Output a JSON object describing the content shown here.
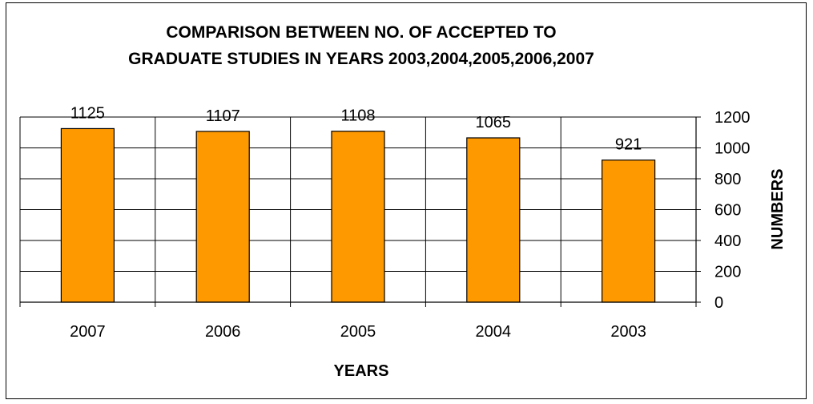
{
  "chart_data": {
    "type": "bar",
    "title_lines": [
      "COMPARISON BETWEEN NO. OF ACCEPTED TO",
      "GRADUATE STUDIES IN YEARS 2003,2004,2005,2006,2007"
    ],
    "categories": [
      "2007",
      "2006",
      "2005",
      "2004",
      "2003"
    ],
    "values": [
      1125,
      1107,
      1108,
      1065,
      921
    ],
    "data_labels": [
      "1125",
      "1107",
      "1108",
      "1065",
      "921"
    ],
    "xlabel": "YEARS",
    "ylabel": "NUMBERS",
    "ylim": [
      0,
      1200
    ],
    "yticks": [
      0,
      200,
      400,
      600,
      800,
      1000,
      1200
    ],
    "y_axis_side": "right",
    "gridlines": true,
    "legend": "none",
    "bar_color": "#FF9900"
  }
}
